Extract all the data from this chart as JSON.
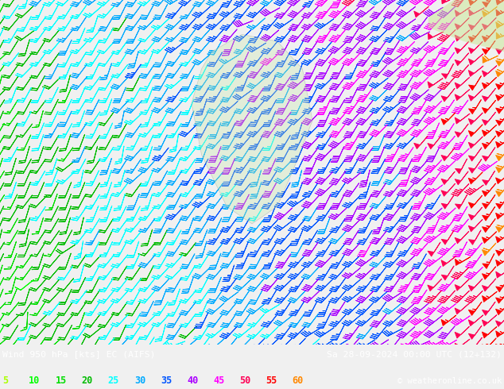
{
  "title_left": "Wind 950 hPa [kts] EC (AIFS)",
  "title_right": "Sa 28-09-2024 00:00 UTC (12+132)",
  "copyright": "© weatheronline.co.uk",
  "legend_values": [
    5,
    10,
    15,
    20,
    25,
    30,
    35,
    40,
    45,
    50,
    55,
    60
  ],
  "legend_colors": [
    "#aaff00",
    "#00ff00",
    "#00dd00",
    "#00bb00",
    "#00ffff",
    "#00aaff",
    "#0055ff",
    "#aa00ff",
    "#ff00ff",
    "#ff0055",
    "#ff0000",
    "#ff8800"
  ],
  "fig_width": 6.34,
  "fig_height": 4.9,
  "dpi": 100,
  "map_facecolor": "#f0f0f0",
  "bottom_bar_color": "#000080",
  "bottom_text_color": "#ffffff",
  "nx": 38,
  "ny": 30,
  "seed": 17
}
